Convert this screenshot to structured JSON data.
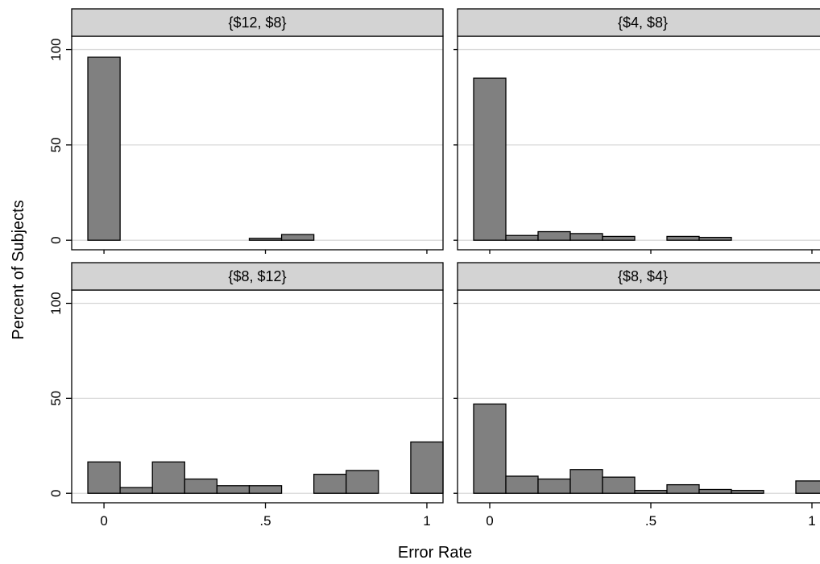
{
  "chart_data": {
    "type": "bar",
    "xlabel": "Error Rate",
    "ylabel": "Percent of Subjects",
    "xlim": [
      -0.1,
      1.05
    ],
    "ylim": [
      -5,
      107
    ],
    "x_ticks": [
      0,
      0.5,
      1
    ],
    "x_tick_labels": [
      "0",
      ".5",
      "1"
    ],
    "y_ticks": [
      0,
      50,
      100
    ],
    "y_tick_labels": [
      "0",
      "50",
      "100"
    ],
    "bin_width": 0.1,
    "grid": true,
    "bar_color": "#808080",
    "strip_color": "#d3d3d3",
    "panels": [
      {
        "label": "{$12, $8}",
        "bars": [
          {
            "x": 0.0,
            "value": 96
          },
          {
            "x": 0.5,
            "value": 1
          },
          {
            "x": 0.6,
            "value": 3
          }
        ]
      },
      {
        "label": "{$4, $8}",
        "bars": [
          {
            "x": 0.0,
            "value": 85
          },
          {
            "x": 0.1,
            "value": 2.5
          },
          {
            "x": 0.2,
            "value": 4.5
          },
          {
            "x": 0.3,
            "value": 3.5
          },
          {
            "x": 0.4,
            "value": 2
          },
          {
            "x": 0.6,
            "value": 2
          },
          {
            "x": 0.7,
            "value": 1.5
          }
        ]
      },
      {
        "label": "{$8, $12}",
        "bars": [
          {
            "x": 0.0,
            "value": 16.5
          },
          {
            "x": 0.1,
            "value": 3
          },
          {
            "x": 0.2,
            "value": 16.5
          },
          {
            "x": 0.3,
            "value": 7.5
          },
          {
            "x": 0.4,
            "value": 4
          },
          {
            "x": 0.5,
            "value": 4
          },
          {
            "x": 0.7,
            "value": 10
          },
          {
            "x": 0.8,
            "value": 12
          },
          {
            "x": 1.0,
            "value": 27
          }
        ]
      },
      {
        "label": "{$8, $4}",
        "bars": [
          {
            "x": 0.0,
            "value": 47
          },
          {
            "x": 0.1,
            "value": 9
          },
          {
            "x": 0.2,
            "value": 7.5
          },
          {
            "x": 0.3,
            "value": 12.5
          },
          {
            "x": 0.4,
            "value": 8.5
          },
          {
            "x": 0.5,
            "value": 1.5
          },
          {
            "x": 0.6,
            "value": 4.5
          },
          {
            "x": 0.7,
            "value": 2
          },
          {
            "x": 0.8,
            "value": 1.5
          },
          {
            "x": 1.0,
            "value": 6.5
          }
        ]
      }
    ]
  }
}
